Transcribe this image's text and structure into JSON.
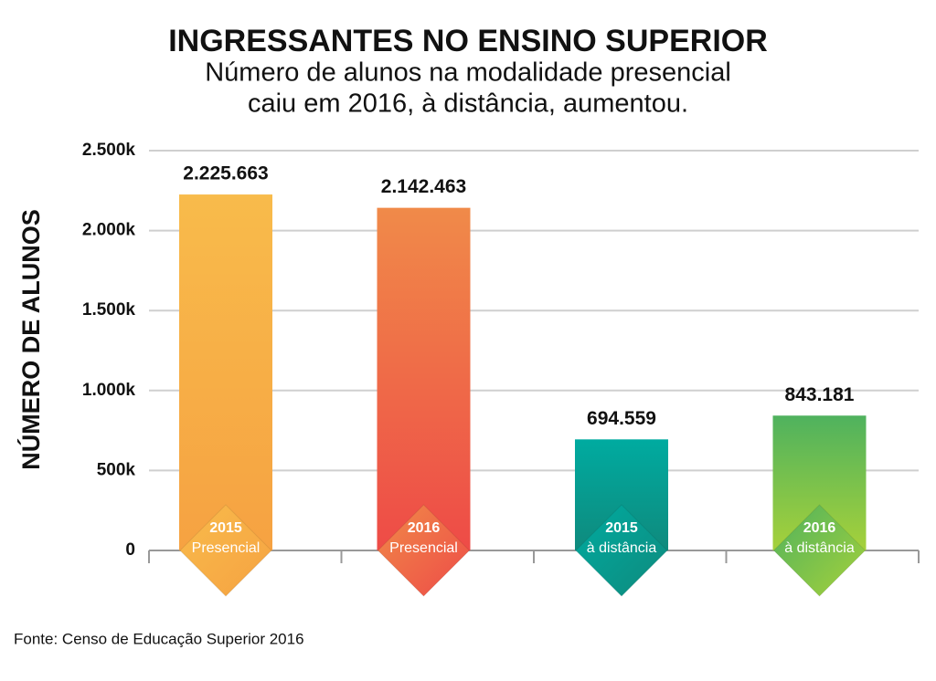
{
  "chart_data": {
    "type": "bar",
    "title": "INGRESSANTES NO ENSINO SUPERIOR",
    "subtitle": [
      "Número de alunos na modalidade presencial",
      "caiu em 2016, à distância, aumentou."
    ],
    "y_label": "NÚMERO DE ALUNOS",
    "source": "Fonte: Censo de Educação Superior 2016",
    "categories": [
      {
        "year": "2015",
        "mode": "Presencial"
      },
      {
        "year": "2016",
        "mode": "Presencial"
      },
      {
        "year": "2015",
        "mode": "à distância"
      },
      {
        "year": "2016",
        "mode": "à distância"
      }
    ],
    "values": [
      2225663,
      2142463,
      694559,
      843181
    ],
    "value_labels": [
      "2.225.663",
      "2.142.463",
      "694.559",
      "843.181"
    ],
    "colors": [
      [
        "#f8bb4b",
        "#f6a242"
      ],
      [
        "#f08a49",
        "#ee4b47"
      ],
      [
        "#00aba0",
        "#0f8a7d"
      ],
      [
        "#4fb25e",
        "#a6d13a"
      ]
    ],
    "ylim": [
      0,
      2500000
    ],
    "yticks": [
      0,
      {
        "value": 500000,
        "label": "500k"
      },
      {
        "value": 1000000,
        "label": "1.000k"
      },
      {
        "value": 1500000,
        "label": "1.500k"
      },
      {
        "value": 2000000,
        "label": "2.000k"
      },
      {
        "value": 2500000,
        "label": "2.500k"
      }
    ],
    "grid": true
  }
}
